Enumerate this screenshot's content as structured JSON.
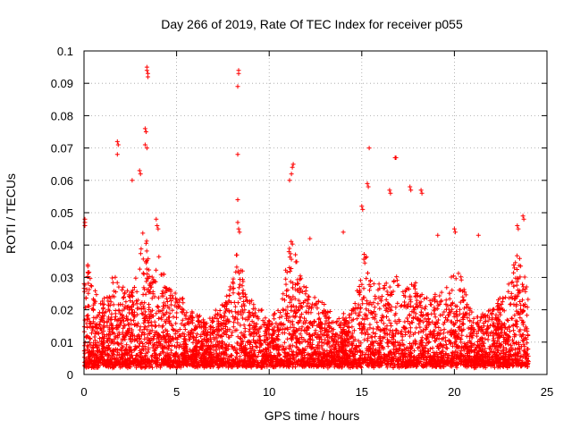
{
  "chart_data": {
    "type": "scatter",
    "title": "Day 266 of 2019, Rate Of TEC Index for receiver p055",
    "xlabel": "GPS time / hours",
    "ylabel": "ROTI / TECUs",
    "xlim": [
      0,
      25
    ],
    "ylim": [
      0,
      0.1
    ],
    "xticks": [
      0,
      5,
      10,
      15,
      20,
      25
    ],
    "xtick_labels": [
      "0",
      "5",
      "10",
      "15",
      "20",
      "25"
    ],
    "yticks": [
      0,
      0.01,
      0.02,
      0.03,
      0.04,
      0.05,
      0.06,
      0.07,
      0.08,
      0.09,
      0.1
    ],
    "ytick_labels": [
      "0",
      "0.01",
      "0.02",
      "0.03",
      "0.04",
      "0.05",
      "0.06",
      "0.07",
      "0.08",
      "0.09",
      "0.1"
    ],
    "grid": true,
    "marker": "+",
    "marker_color": "#ff0000",
    "data_span_hours": [
      0,
      24
    ],
    "series": [
      {
        "name": "ROTI",
        "outliers": [
          [
            3.4,
            0.095
          ],
          [
            3.4,
            0.094
          ],
          [
            3.45,
            0.093
          ],
          [
            3.45,
            0.092
          ],
          [
            8.35,
            0.094
          ],
          [
            8.35,
            0.093
          ],
          [
            8.3,
            0.089
          ],
          [
            8.3,
            0.068
          ],
          [
            1.8,
            0.072
          ],
          [
            1.85,
            0.071
          ],
          [
            1.8,
            0.068
          ],
          [
            3.3,
            0.076
          ],
          [
            3.35,
            0.075
          ],
          [
            3.3,
            0.071
          ],
          [
            3.4,
            0.07
          ],
          [
            15.4,
            0.07
          ],
          [
            16.8,
            0.067
          ],
          [
            16.85,
            0.067
          ],
          [
            11.3,
            0.065
          ],
          [
            11.25,
            0.064
          ],
          [
            11.2,
            0.062
          ],
          [
            11.1,
            0.06
          ],
          [
            2.6,
            0.06
          ],
          [
            3.0,
            0.063
          ],
          [
            3.05,
            0.062
          ],
          [
            15.3,
            0.059
          ],
          [
            15.35,
            0.058
          ],
          [
            17.6,
            0.058
          ],
          [
            17.65,
            0.057
          ],
          [
            18.2,
            0.057
          ],
          [
            18.25,
            0.056
          ],
          [
            16.5,
            0.057
          ],
          [
            16.55,
            0.056
          ],
          [
            8.3,
            0.054
          ],
          [
            15.0,
            0.052
          ],
          [
            15.05,
            0.051
          ],
          [
            0.05,
            0.048
          ],
          [
            0.05,
            0.047
          ],
          [
            0.05,
            0.046
          ],
          [
            23.7,
            0.049
          ],
          [
            23.75,
            0.048
          ],
          [
            23.4,
            0.046
          ],
          [
            23.45,
            0.045
          ],
          [
            8.3,
            0.047
          ],
          [
            8.35,
            0.045
          ],
          [
            8.4,
            0.044
          ],
          [
            3.9,
            0.048
          ],
          [
            3.95,
            0.046
          ],
          [
            4.0,
            0.045
          ],
          [
            12.2,
            0.042
          ],
          [
            14.0,
            0.044
          ],
          [
            19.1,
            0.043
          ],
          [
            20.0,
            0.045
          ],
          [
            20.05,
            0.044
          ],
          [
            21.3,
            0.043
          ]
        ]
      }
    ]
  }
}
